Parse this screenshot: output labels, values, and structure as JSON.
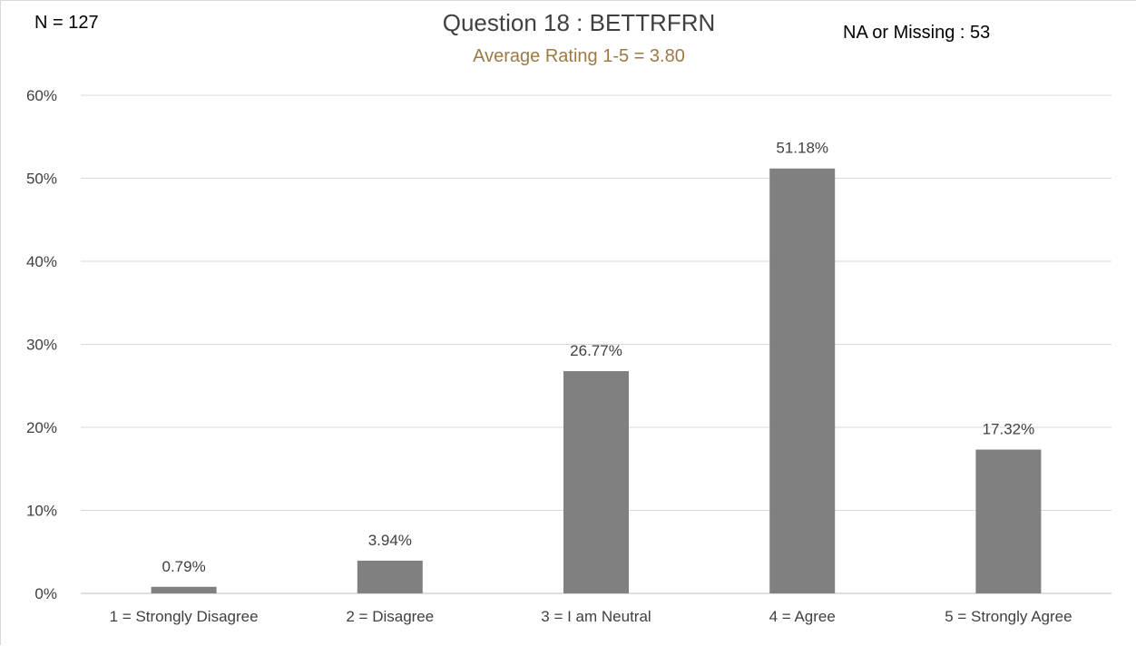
{
  "header": {
    "n_label": "N = 127",
    "title": "Question 18 : BETTRFRN",
    "subtitle": "Average Rating 1-5 = 3.80",
    "missing_label": "NA or Missing : 53"
  },
  "colors": {
    "bar": "#808080",
    "grid": "#d9d9d9",
    "axis": "#bfbfbf",
    "subtitle": "#9c7a44",
    "text": "#404040"
  },
  "chart_data": {
    "type": "bar",
    "title": "Question 18 : BETTRFRN",
    "subtitle": "Average Rating 1-5 = 3.80",
    "categories": [
      "1 = Strongly Disagree",
      "2 = Disagree",
      "3 = I am Neutral",
      "4 = Agree",
      "5 = Strongly Agree"
    ],
    "values": [
      0.79,
      3.94,
      26.77,
      51.18,
      17.32
    ],
    "data_labels": [
      "0.79%",
      "3.94%",
      "26.77%",
      "51.18%",
      "17.32%"
    ],
    "y_ticks": [
      0,
      10,
      20,
      30,
      40,
      50,
      60
    ],
    "y_tick_labels": [
      "0%",
      "10%",
      "20%",
      "30%",
      "40%",
      "50%",
      "60%"
    ],
    "ylim": [
      0,
      60
    ],
    "xlabel": "",
    "ylabel": "",
    "grid": true,
    "legend": "none"
  }
}
